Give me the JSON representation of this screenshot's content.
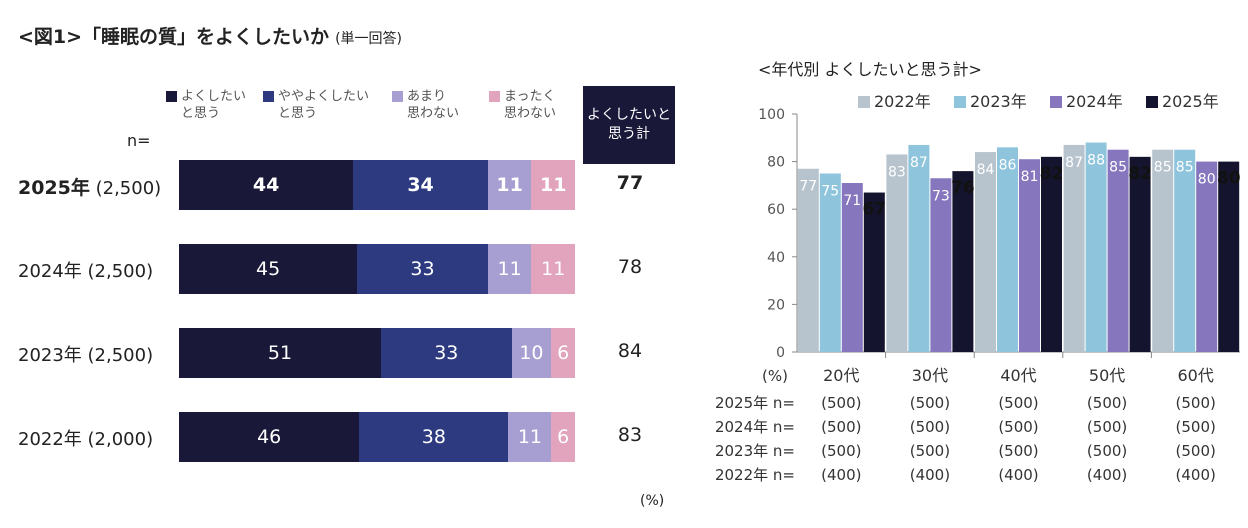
{
  "title": "<図1>「睡眠の質」をよくしたいか",
  "title_sub": "(単一回答)",
  "left": {
    "n_label": "n=",
    "total_header": "よくしたいと\n思う計",
    "unit": "(%)",
    "legend": [
      {
        "label": "よくしたい\nと思う",
        "color": "#191838"
      },
      {
        "label": "ややよくしたい\nと思う",
        "color": "#2e3a80"
      },
      {
        "label": "あまり\n思わない",
        "color": "#a79fd2"
      },
      {
        "label": "まったく\n思わない",
        "color": "#e2a3bc"
      }
    ],
    "rows": [
      {
        "year": "2025年",
        "n": "(2,500)",
        "values": [
          "44",
          "34",
          "11",
          "11"
        ],
        "total": "77",
        "bold": true
      },
      {
        "year": "2024年",
        "n": "(2,500)",
        "values": [
          "45",
          "33",
          "11",
          "11"
        ],
        "total": "78",
        "bold": false
      },
      {
        "year": "2023年",
        "n": "(2,500)",
        "values": [
          "51",
          "33",
          "10",
          "6"
        ],
        "total": "84",
        "bold": false
      },
      {
        "year": "2022年",
        "n": "(2,000)",
        "values": [
          "46",
          "38",
          "11",
          "6"
        ],
        "total": "83",
        "bold": false
      }
    ]
  },
  "right": {
    "title": "<年代別 よくしたいと思う計>",
    "unit": "(%)",
    "n_rows": [
      {
        "label": "2025年 n=",
        "values": [
          "(500)",
          "(500)",
          "(500)",
          "(500)",
          "(500)"
        ]
      },
      {
        "label": "2024年 n=",
        "values": [
          "(500)",
          "(500)",
          "(500)",
          "(500)",
          "(500)"
        ]
      },
      {
        "label": "2023年 n=",
        "values": [
          "(500)",
          "(500)",
          "(500)",
          "(500)",
          "(500)"
        ]
      },
      {
        "label": "2022年 n=",
        "values": [
          "(400)",
          "(400)",
          "(400)",
          "(400)",
          "(400)"
        ]
      }
    ]
  },
  "chart_data": [
    {
      "type": "bar",
      "stacked": true,
      "orientation": "horizontal",
      "categories": [
        "2025年 (2,500)",
        "2024年 (2,500)",
        "2023年 (2,500)",
        "2022年 (2,000)"
      ],
      "series": [
        {
          "name": "よくしたいと思う",
          "values": [
            44,
            45,
            51,
            46
          ],
          "color": "#191838"
        },
        {
          "name": "ややよくしたいと思う",
          "values": [
            34,
            33,
            33,
            38
          ],
          "color": "#2e3a80"
        },
        {
          "name": "あまり思わない",
          "values": [
            11,
            11,
            10,
            11
          ],
          "color": "#a79fd2"
        },
        {
          "name": "まったく思わない",
          "values": [
            11,
            11,
            6,
            6
          ],
          "color": "#e2a3bc"
        }
      ],
      "totals": {
        "name": "よくしたいと思う計",
        "values": [
          77,
          78,
          84,
          83
        ]
      },
      "legend_position": "top"
    },
    {
      "type": "bar",
      "title": "<年代別 よくしたいと思う計>",
      "categories": [
        "20代",
        "30代",
        "40代",
        "50代",
        "60代"
      ],
      "series": [
        {
          "name": "2022年",
          "values": [
            77,
            83,
            84,
            87,
            85
          ],
          "color": "#b7c3cd"
        },
        {
          "name": "2023年",
          "values": [
            75,
            87,
            86,
            88,
            85
          ],
          "color": "#8fc5dc"
        },
        {
          "name": "2024年",
          "values": [
            71,
            73,
            81,
            85,
            80
          ],
          "color": "#8576be"
        },
        {
          "name": "2025年",
          "values": [
            67,
            76,
            82,
            82,
            80
          ],
          "color": "#14142e"
        }
      ],
      "ylim": [
        0,
        100
      ],
      "yticks": [
        "0",
        "20",
        "40",
        "60",
        "80",
        "100"
      ],
      "ylabel": "(%)",
      "grid": false,
      "legend_position": "top"
    }
  ]
}
